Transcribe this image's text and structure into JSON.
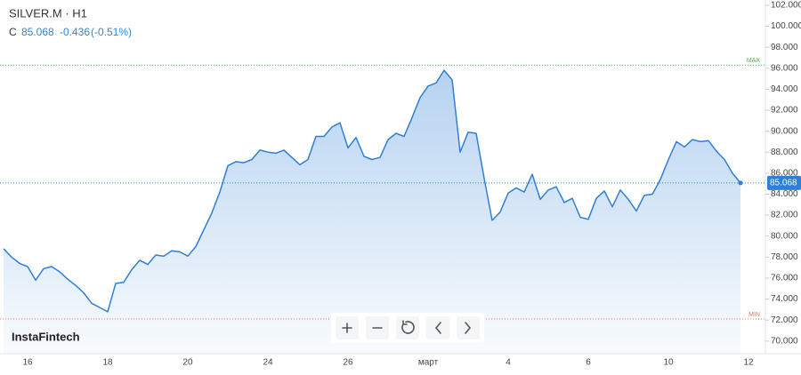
{
  "chart_data": {
    "type": "line",
    "title": "SILVER.M · H1",
    "close_label": "C",
    "close": 85.068,
    "change": -0.436,
    "change_percent": -0.51,
    "change_percent_label": "(-0.51%)",
    "brand": "InstaFintech",
    "color": "#2f7fd6",
    "categories": [
      null,
      null,
      null,
      "16",
      null,
      null,
      null,
      null,
      null,
      null,
      null,
      null,
      null,
      "18",
      null,
      null,
      null,
      null,
      null,
      null,
      null,
      null,
      null,
      "20",
      null,
      null,
      null,
      null,
      null,
      null,
      null,
      null,
      null,
      "24",
      null,
      null,
      null,
      null,
      null,
      null,
      null,
      null,
      null,
      "26",
      null,
      null,
      null,
      null,
      null,
      null,
      null,
      null,
      null,
      "март",
      null,
      null,
      null,
      null,
      null,
      null,
      null,
      null,
      null,
      "4",
      null,
      null,
      null,
      null,
      null,
      null,
      null,
      null,
      null,
      "6",
      null,
      null,
      null,
      null,
      null,
      null,
      null,
      null,
      null,
      "10",
      null,
      null,
      null,
      null,
      null,
      null,
      null,
      null,
      null,
      "12"
    ],
    "values": [
      78.8,
      78.0,
      77.4,
      77.1,
      75.8,
      76.9,
      77.1,
      76.6,
      75.9,
      75.3,
      74.6,
      73.6,
      73.2,
      72.8,
      75.5,
      75.6,
      76.8,
      77.7,
      77.3,
      78.2,
      78.1,
      78.6,
      78.5,
      78.1,
      79.0,
      80.6,
      82.2,
      84.2,
      86.7,
      87.1,
      87.0,
      87.3,
      88.2,
      88.0,
      87.9,
      88.2,
      87.5,
      86.8,
      87.3,
      89.5,
      89.5,
      90.4,
      90.8,
      88.4,
      89.4,
      87.6,
      87.3,
      87.5,
      89.2,
      89.8,
      89.5,
      91.3,
      93.2,
      94.3,
      94.6,
      95.8,
      94.9,
      88.0,
      89.9,
      89.8,
      85.5,
      81.5,
      82.3,
      84.1,
      84.6,
      84.2,
      85.9,
      83.5,
      84.4,
      84.7,
      83.2,
      83.6,
      81.8,
      81.6,
      83.6,
      84.3,
      82.8,
      84.4,
      83.5,
      82.4,
      83.9,
      84.0,
      85.4,
      87.3,
      89.0,
      88.5,
      89.2,
      89.0,
      89.1,
      88.1,
      87.3,
      86.0,
      85.068,
      null
    ],
    "max_line": {
      "value": 96.3,
      "label": "MAX",
      "color": "#4caf50"
    },
    "min_line": {
      "value": 72.1,
      "label": "MIN",
      "color": "#e57373"
    },
    "ylim": [
      68.8,
      102.5
    ],
    "yticks": [
      {
        "value": 70,
        "label": "70.000"
      },
      {
        "value": 72,
        "label": "72.000"
      },
      {
        "value": 74,
        "label": "74.000"
      },
      {
        "value": 76,
        "label": "76.000"
      },
      {
        "value": 78,
        "label": "78.000"
      },
      {
        "value": 80,
        "label": "80.000"
      },
      {
        "value": 82,
        "label": "82.000"
      },
      {
        "value": 84,
        "label": "84.000"
      },
      {
        "value": 86,
        "label": "86.000"
      },
      {
        "value": 88,
        "label": "88.000"
      },
      {
        "value": 90,
        "label": "90.000"
      },
      {
        "value": 92,
        "label": "92.000"
      },
      {
        "value": 94,
        "label": "94.000"
      },
      {
        "value": 96,
        "label": "96.000"
      },
      {
        "value": 98,
        "label": "98.000"
      },
      {
        "value": 100,
        "label": "100.000"
      },
      {
        "value": 102,
        "label": "102.000"
      }
    ]
  }
}
